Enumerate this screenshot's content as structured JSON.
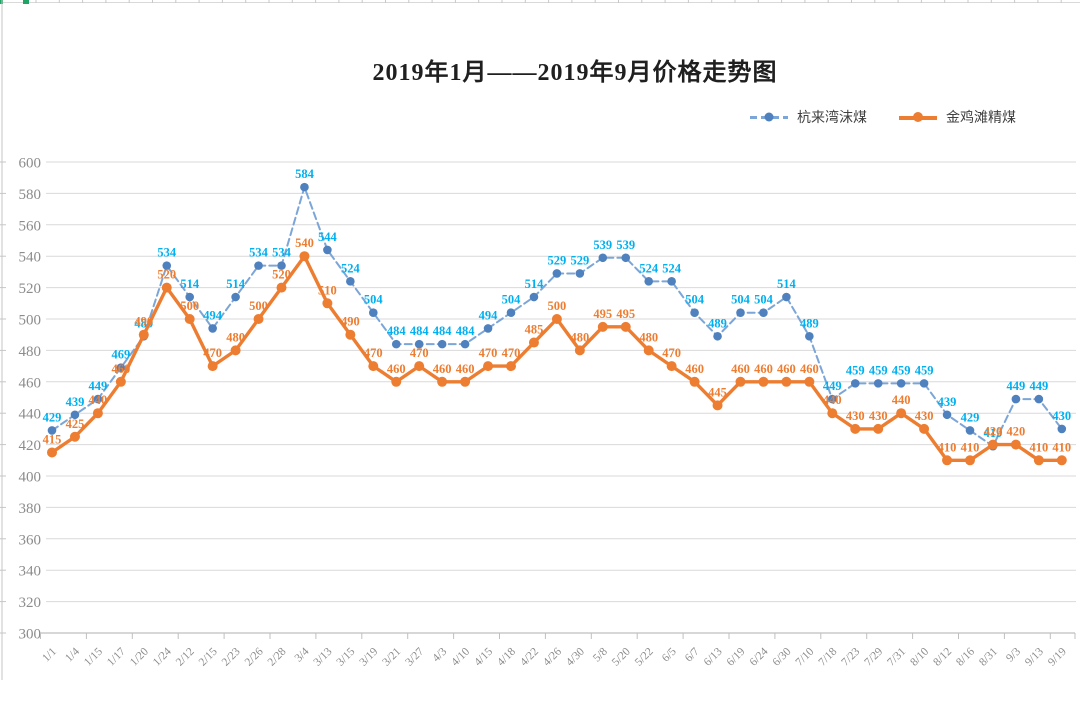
{
  "chart_data": {
    "type": "line",
    "title": "2019年1月——2019年9月价格走势图",
    "xlabel": "",
    "ylabel": "",
    "ylim": [
      300,
      600
    ],
    "ytick_step": 20,
    "grid": true,
    "legend_position": "top-right",
    "categories": [
      "1/1",
      "1/4",
      "1/15",
      "1/17",
      "1/20",
      "1/24",
      "2/12",
      "2/15",
      "2/23",
      "2/26",
      "2/28",
      "3/4",
      "3/13",
      "3/15",
      "3/19",
      "3/21",
      "3/27",
      "4/3",
      "4/10",
      "4/15",
      "4/18",
      "4/22",
      "4/26",
      "4/30",
      "5/8",
      "5/20",
      "5/22",
      "6/5",
      "6/7",
      "6/13",
      "6/19",
      "6/24",
      "6/30",
      "7/10",
      "7/18",
      "7/23",
      "7/29",
      "7/31",
      "8/10",
      "8/12",
      "8/16",
      "8/31",
      "9/3",
      "9/13",
      "9/19"
    ],
    "series": [
      {
        "name": "杭来湾沫煤",
        "style": "dashed",
        "color": "#7ca5d8",
        "dot_color": "#4E81BD",
        "label_color": "#00B0F0",
        "values": [
          429,
          439,
          449,
          469,
          489,
          534,
          514,
          494,
          514,
          534,
          534,
          584,
          544,
          524,
          504,
          484,
          484,
          484,
          484,
          494,
          504,
          514,
          529,
          529,
          539,
          539,
          524,
          524,
          504,
          489,
          504,
          504,
          514,
          489,
          449,
          459,
          459,
          459,
          459,
          439,
          429,
          419,
          449,
          449,
          430
        ]
      },
      {
        "name": "金鸡滩精煤",
        "style": "solid",
        "color": "#ED7D31",
        "dot_color": "#ED7D31",
        "label_color": "#ED7D31",
        "values": [
          415,
          425,
          440,
          460,
          490,
          520,
          500,
          470,
          480,
          500,
          520,
          540,
          510,
          490,
          470,
          460,
          470,
          460,
          460,
          470,
          470,
          485,
          500,
          480,
          495,
          495,
          480,
          470,
          460,
          445,
          460,
          460,
          460,
          460,
          440,
          430,
          430,
          440,
          430,
          410,
          410,
          420,
          420,
          410,
          410
        ]
      }
    ],
    "axis_color": "#BFBFBF",
    "grid_color": "#D9D9D9",
    "tick_label_color": "#8C8C8C",
    "title_color": "#1F1F1F",
    "sheet_accent_color": "#21A366"
  }
}
